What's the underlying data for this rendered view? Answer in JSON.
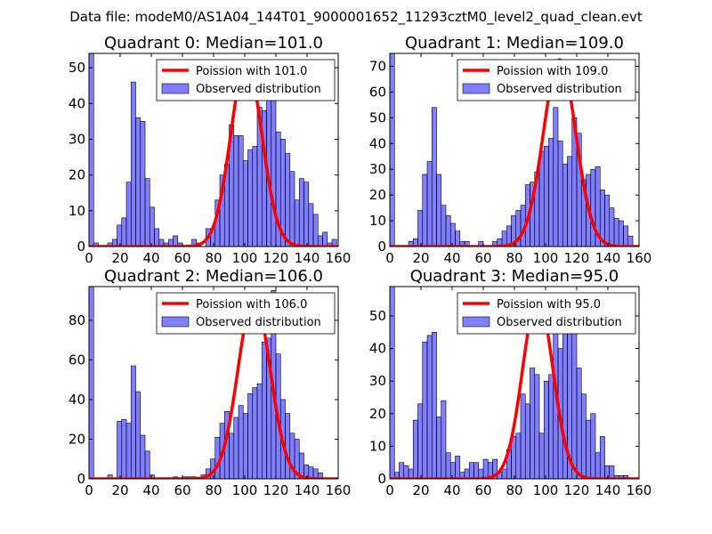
{
  "figure": {
    "suptitle": "Data file: modeM0/AS1A04_144T01_9000001652_11293cztM0_level2_quad_clean.evt",
    "colors": {
      "bars": "#0000ff",
      "poisson": "#ff0000",
      "axes": "#000000",
      "background": "#ffffff"
    }
  },
  "chart_data": [
    {
      "type": "bar",
      "title": "Quadrant 0: Median=101.0",
      "median": 101.0,
      "xlim": [
        0,
        160
      ],
      "ylim": [
        0,
        54
      ],
      "xticks": [
        0,
        20,
        40,
        60,
        80,
        100,
        120,
        140,
        160
      ],
      "yticks": [
        0,
        10,
        20,
        30,
        40,
        50
      ],
      "bin_width": 3,
      "poisson_peak": 51.5,
      "legend": [
        "Poission with 101.0",
        "Observed distribution"
      ],
      "legend_position": "top-right",
      "bins": [
        [
          0,
          54
        ],
        [
          3,
          1
        ],
        [
          12,
          1
        ],
        [
          15,
          2
        ],
        [
          18,
          6
        ],
        [
          21,
          8
        ],
        [
          24,
          18
        ],
        [
          27,
          46
        ],
        [
          30,
          36
        ],
        [
          33,
          35
        ],
        [
          36,
          19
        ],
        [
          39,
          11
        ],
        [
          42,
          5
        ],
        [
          45,
          2
        ],
        [
          48,
          1
        ],
        [
          51,
          2
        ],
        [
          54,
          3
        ],
        [
          57,
          1
        ],
        [
          66,
          2
        ],
        [
          69,
          1
        ],
        [
          75,
          5
        ],
        [
          78,
          5
        ],
        [
          81,
          13
        ],
        [
          84,
          20
        ],
        [
          87,
          23
        ],
        [
          90,
          34
        ],
        [
          93,
          31
        ],
        [
          96,
          31
        ],
        [
          99,
          24
        ],
        [
          102,
          27
        ],
        [
          105,
          28
        ],
        [
          108,
          39
        ],
        [
          111,
          38
        ],
        [
          114,
          44
        ],
        [
          117,
          41
        ],
        [
          120,
          32
        ],
        [
          123,
          30
        ],
        [
          126,
          26
        ],
        [
          129,
          21
        ],
        [
          132,
          13
        ],
        [
          135,
          19
        ],
        [
          138,
          18
        ],
        [
          141,
          12
        ],
        [
          144,
          9
        ],
        [
          147,
          3
        ],
        [
          150,
          4
        ],
        [
          153,
          1
        ],
        [
          156,
          2
        ]
      ]
    },
    {
      "type": "bar",
      "title": "Quadrant 1: Median=109.0",
      "median": 109.0,
      "xlim": [
        0,
        160
      ],
      "ylim": [
        0,
        75
      ],
      "xticks": [
        0,
        20,
        40,
        60,
        80,
        100,
        120,
        140,
        160
      ],
      "yticks": [
        0,
        10,
        20,
        30,
        40,
        50,
        60,
        70
      ],
      "bin_width": 3,
      "poisson_peak": 72.5,
      "legend": [
        "Poission with 109.0",
        "Observed distribution"
      ],
      "legend_position": "top-right",
      "bins": [
        [
          0,
          75
        ],
        [
          12,
          2
        ],
        [
          15,
          3
        ],
        [
          18,
          14
        ],
        [
          21,
          28
        ],
        [
          24,
          33
        ],
        [
          27,
          54
        ],
        [
          30,
          28
        ],
        [
          33,
          16
        ],
        [
          36,
          12
        ],
        [
          39,
          9
        ],
        [
          42,
          6
        ],
        [
          45,
          2
        ],
        [
          48,
          2
        ],
        [
          57,
          2
        ],
        [
          66,
          2
        ],
        [
          69,
          3
        ],
        [
          72,
          6
        ],
        [
          75,
          8
        ],
        [
          78,
          12
        ],
        [
          81,
          14
        ],
        [
          84,
          16
        ],
        [
          87,
          24
        ],
        [
          90,
          25
        ],
        [
          93,
          29
        ],
        [
          96,
          37
        ],
        [
          99,
          39
        ],
        [
          102,
          42
        ],
        [
          105,
          54
        ],
        [
          108,
          41
        ],
        [
          111,
          32
        ],
        [
          114,
          35
        ],
        [
          117,
          50
        ],
        [
          120,
          44
        ],
        [
          123,
          26
        ],
        [
          126,
          28
        ],
        [
          129,
          30
        ],
        [
          132,
          31
        ],
        [
          135,
          22
        ],
        [
          138,
          20
        ],
        [
          141,
          15
        ],
        [
          144,
          11
        ],
        [
          147,
          10
        ],
        [
          150,
          8
        ],
        [
          153,
          4
        ]
      ]
    },
    {
      "type": "bar",
      "title": "Quadrant 2: Median=106.0",
      "median": 106.0,
      "xlim": [
        0,
        160
      ],
      "ylim": [
        0,
        97
      ],
      "xticks": [
        0,
        20,
        40,
        60,
        80,
        100,
        120,
        140,
        160
      ],
      "yticks": [
        0,
        20,
        40,
        60,
        80
      ],
      "bin_width": 3,
      "poisson_peak": 91.5,
      "legend": [
        "Poission with 106.0",
        "Observed distribution"
      ],
      "legend_position": "top-right",
      "bins": [
        [
          0,
          97
        ],
        [
          12,
          2
        ],
        [
          18,
          29
        ],
        [
          21,
          30
        ],
        [
          24,
          28
        ],
        [
          27,
          57
        ],
        [
          30,
          44
        ],
        [
          33,
          22
        ],
        [
          36,
          14
        ],
        [
          39,
          2
        ],
        [
          54,
          1
        ],
        [
          60,
          1
        ],
        [
          63,
          1
        ],
        [
          66,
          1
        ],
        [
          72,
          2
        ],
        [
          75,
          5
        ],
        [
          78,
          10
        ],
        [
          81,
          21
        ],
        [
          84,
          28
        ],
        [
          87,
          34
        ],
        [
          90,
          23
        ],
        [
          93,
          31
        ],
        [
          96,
          37
        ],
        [
          99,
          33
        ],
        [
          102,
          43
        ],
        [
          105,
          46
        ],
        [
          108,
          48
        ],
        [
          111,
          69
        ],
        [
          114,
          71
        ],
        [
          117,
          95
        ],
        [
          120,
          63
        ],
        [
          123,
          40
        ],
        [
          126,
          33
        ],
        [
          129,
          23
        ],
        [
          132,
          20
        ],
        [
          135,
          13
        ],
        [
          138,
          7
        ],
        [
          141,
          6
        ],
        [
          144,
          5
        ],
        [
          147,
          3
        ]
      ]
    },
    {
      "type": "bar",
      "title": "Quadrant 3: Median=95.0",
      "median": 95.0,
      "xlim": [
        0,
        160
      ],
      "ylim": [
        0,
        59
      ],
      "xticks": [
        0,
        20,
        40,
        60,
        80,
        100,
        120,
        140,
        160
      ],
      "yticks": [
        0,
        10,
        20,
        30,
        40,
        50
      ],
      "bin_width": 3,
      "poisson_peak": 55.5,
      "legend": [
        "Poission with 95.0",
        "Observed distribution"
      ],
      "legend_position": "top-right",
      "bins": [
        [
          0,
          59
        ],
        [
          3,
          2
        ],
        [
          6,
          5
        ],
        [
          9,
          4
        ],
        [
          12,
          3
        ],
        [
          15,
          18
        ],
        [
          18,
          23
        ],
        [
          21,
          42
        ],
        [
          24,
          44
        ],
        [
          27,
          45
        ],
        [
          30,
          19
        ],
        [
          33,
          24
        ],
        [
          36,
          8
        ],
        [
          39,
          5
        ],
        [
          42,
          7
        ],
        [
          45,
          2
        ],
        [
          48,
          3
        ],
        [
          51,
          5
        ],
        [
          54,
          5
        ],
        [
          57,
          3
        ],
        [
          60,
          6
        ],
        [
          63,
          5
        ],
        [
          66,
          6
        ],
        [
          69,
          2
        ],
        [
          72,
          3
        ],
        [
          75,
          9
        ],
        [
          78,
          13
        ],
        [
          81,
          14
        ],
        [
          84,
          26
        ],
        [
          87,
          23
        ],
        [
          90,
          34
        ],
        [
          93,
          32
        ],
        [
          96,
          14
        ],
        [
          99,
          30
        ],
        [
          102,
          32
        ],
        [
          105,
          51
        ],
        [
          108,
          40
        ],
        [
          111,
          47
        ],
        [
          114,
          48
        ],
        [
          117,
          56
        ],
        [
          120,
          34
        ],
        [
          123,
          26
        ],
        [
          126,
          18
        ],
        [
          129,
          20
        ],
        [
          132,
          8
        ],
        [
          135,
          13
        ],
        [
          138,
          4
        ],
        [
          141,
          4
        ],
        [
          144,
          1
        ],
        [
          147,
          1
        ],
        [
          150,
          1
        ]
      ]
    }
  ]
}
